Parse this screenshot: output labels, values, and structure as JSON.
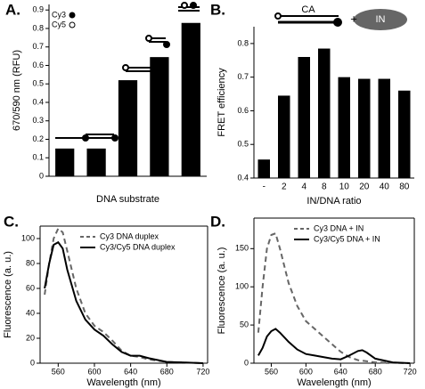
{
  "chart_data": [
    {
      "type": "bar",
      "label": "A.",
      "ylabel": "670/590 nm (RFU)",
      "xlabel": "DNA substrate",
      "categories": [
        null,
        null,
        null,
        null,
        null
      ],
      "values": [
        0.15,
        0.15,
        0.52,
        0.645,
        0.83
      ],
      "color": "#000000",
      "ylim": [
        0,
        0.93
      ],
      "yticks": [
        0,
        0.1,
        0.2,
        0.3,
        0.4,
        0.5,
        0.6,
        0.7,
        0.8,
        0.9
      ],
      "legend": [
        "Cy3",
        "Cy5"
      ]
    },
    {
      "type": "bar",
      "label": "B.",
      "ylabel": "FRET efficiency",
      "xlabel": "IN/DNA ratio",
      "categories": [
        "-",
        "2",
        "4",
        "8",
        "10",
        "20",
        "40",
        "80"
      ],
      "values": [
        0.455,
        0.645,
        0.76,
        0.785,
        0.7,
        0.695,
        0.695,
        0.66
      ],
      "color": "#000000",
      "ylim": [
        0.4,
        0.85
      ],
      "yticks": [
        0.4,
        0.5,
        0.6,
        0.7,
        0.8
      ],
      "annotations": [
        "CA",
        "IN"
      ]
    },
    {
      "type": "line",
      "label": "C.",
      "ylabel": "Fluorescence (a. u.)",
      "xlabel": "Wavelength (nm)",
      "xlim": [
        540,
        725
      ],
      "xticks": [
        560,
        600,
        640,
        680,
        720
      ],
      "ylim": [
        0,
        110
      ],
      "yticks": [
        0,
        20,
        40,
        60,
        80,
        100
      ],
      "series": [
        {
          "name": "Cy3 DNA duplex",
          "color": "#666666",
          "style": "dashed",
          "x": [
            545,
            550,
            555,
            560,
            565,
            570,
            580,
            590,
            600,
            610,
            620,
            630,
            640,
            650,
            660,
            680,
            700,
            720
          ],
          "values": [
            55,
            80,
            100,
            108,
            105,
            90,
            60,
            40,
            30,
            25,
            18,
            10,
            6,
            5,
            3,
            1,
            0.5,
            0
          ]
        },
        {
          "name": "Cy3/Cy5 DNA duplex",
          "color": "#000000",
          "style": "solid",
          "x": [
            545,
            550,
            555,
            560,
            565,
            570,
            580,
            590,
            600,
            610,
            620,
            630,
            640,
            650,
            660,
            680,
            700,
            720
          ],
          "values": [
            60,
            80,
            95,
            97,
            92,
            75,
            50,
            35,
            27,
            22,
            15,
            9,
            6,
            6,
            4,
            1,
            0.5,
            0
          ]
        }
      ]
    },
    {
      "type": "line",
      "label": "D.",
      "ylabel": "Fluorescence (a. u.)",
      "xlabel": "Wavelength (nm)",
      "xlim": [
        540,
        725
      ],
      "xticks": [
        560,
        600,
        640,
        680,
        720
      ],
      "ylim": [
        0,
        190
      ],
      "yticks": [
        0,
        50,
        100,
        150
      ],
      "series": [
        {
          "name": "Cy3 DNA + IN",
          "color": "#666666",
          "style": "dashed",
          "x": [
            545,
            550,
            555,
            560,
            565,
            570,
            580,
            590,
            600,
            610,
            620,
            630,
            640,
            650,
            660,
            680,
            720
          ],
          "values": [
            40,
            100,
            150,
            168,
            170,
            150,
            105,
            75,
            55,
            45,
            35,
            25,
            15,
            8,
            4,
            1,
            0
          ]
        },
        {
          "name": "Cy3/Cy5 DNA + IN",
          "color": "#000000",
          "style": "solid",
          "x": [
            545,
            550,
            555,
            560,
            565,
            570,
            580,
            590,
            600,
            610,
            620,
            630,
            640,
            650,
            660,
            665,
            670,
            680,
            700,
            720
          ],
          "values": [
            10,
            20,
            35,
            42,
            45,
            40,
            28,
            18,
            12,
            10,
            8,
            6,
            5,
            10,
            16,
            17,
            14,
            6,
            1,
            0
          ]
        }
      ]
    }
  ]
}
